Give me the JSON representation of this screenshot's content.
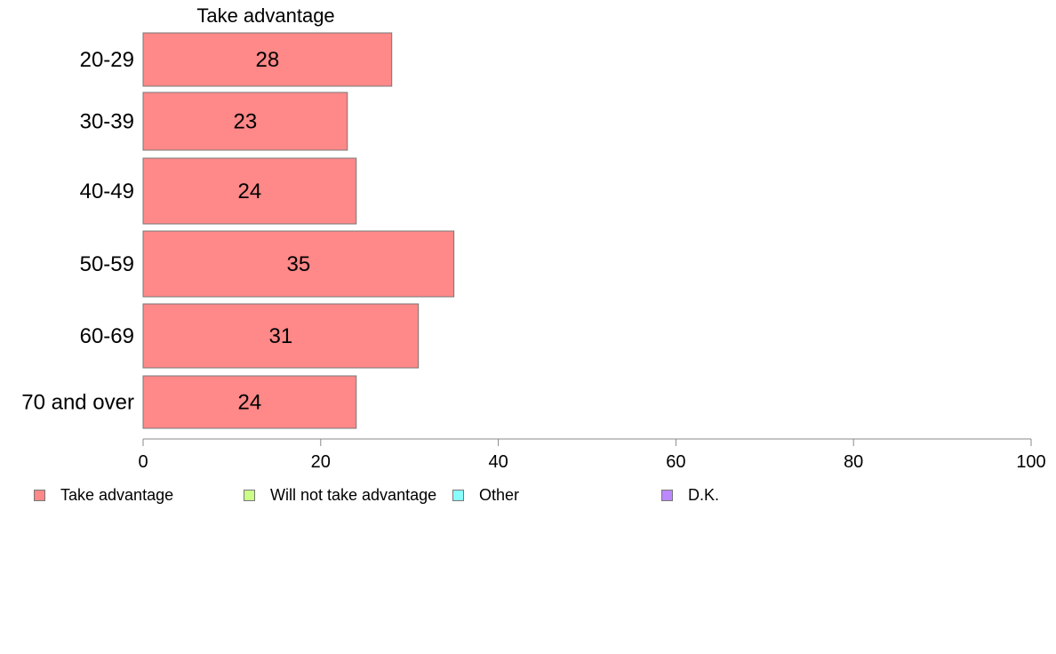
{
  "chart_data": {
    "type": "bar",
    "orientation": "horizontal",
    "title": "Take advantage",
    "categories": [
      "20-29",
      "30-39",
      "40-49",
      "50-59",
      "60-69",
      "70 and over"
    ],
    "series": [
      {
        "name": "Take advantage",
        "values": [
          28,
          23,
          24,
          35,
          31,
          24
        ],
        "color": "#ff8888"
      }
    ],
    "xlim": [
      0,
      100
    ],
    "xticks": [
      "0",
      "20",
      "40",
      "60",
      "80",
      "100"
    ],
    "grid": false,
    "legend": {
      "position": "bottom",
      "items": [
        {
          "label": "Take advantage",
          "color": "#ff8888"
        },
        {
          "label": "Will not take advantage",
          "color": "#ccff88"
        },
        {
          "label": "Other",
          "color": "#88ffff"
        },
        {
          "label": "D.K.",
          "color": "#bb88ff"
        }
      ]
    }
  }
}
